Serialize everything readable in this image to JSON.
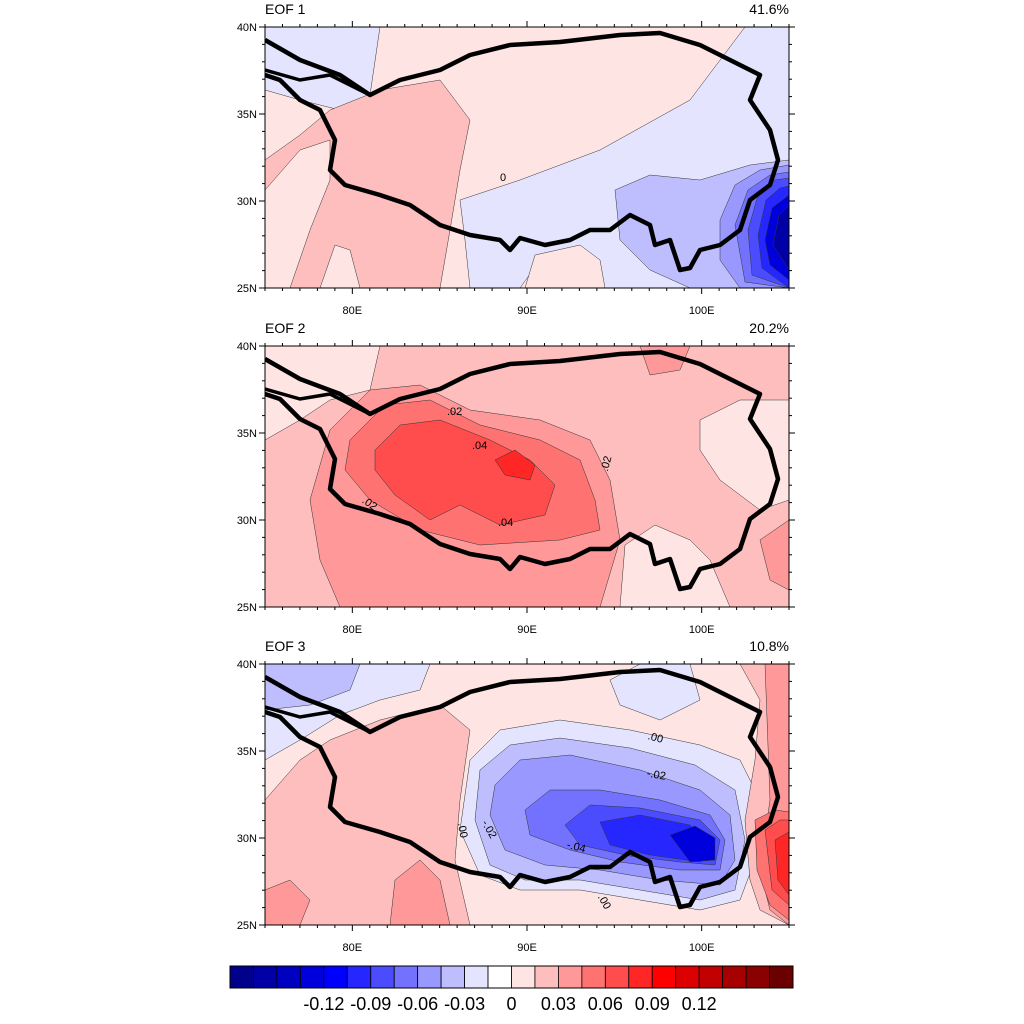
{
  "panels": [
    {
      "title": "EOF 1",
      "variance": "41.6%",
      "contour_labels": [
        "0"
      ]
    },
    {
      "title": "EOF 2",
      "variance": "20.2%",
      "contour_labels": [
        ".02",
        ".04",
        ".02",
        ".02",
        ".04"
      ]
    },
    {
      "title": "EOF 3",
      "variance": "10.8%",
      "contour_labels": [
        ".00",
        "-.02",
        ".00",
        "-.02",
        "-.04",
        ".00"
      ]
    }
  ],
  "axes": {
    "y_ticks": [
      "40N",
      "35N",
      "30N",
      "25N"
    ],
    "x_ticks": [
      "80E",
      "90E",
      "100E"
    ]
  },
  "colorbar": {
    "labels": [
      "-0.12",
      "-0.09",
      "-0.06",
      "-0.03",
      "0",
      "0.03",
      "0.06",
      "0.09",
      "0.12"
    ],
    "colors": [
      "#00008b",
      "#0000a6",
      "#0000c1",
      "#0000dc",
      "#0000ff",
      "#2626ff",
      "#4c4cff",
      "#7272ff",
      "#9898ff",
      "#bebeff",
      "#e4e4ff",
      "#ffffff",
      "#ffe4e4",
      "#ffbebe",
      "#ff9898",
      "#ff7272",
      "#ff4c4c",
      "#ff2626",
      "#ff0000",
      "#dc0000",
      "#c10000",
      "#a60000",
      "#8b0000",
      "#6b0000"
    ]
  },
  "chart_data": {
    "type": "heatmap",
    "region": {
      "lon": [
        75,
        105
      ],
      "lat": [
        25,
        40
      ]
    },
    "fields": [
      {
        "name": "EOF 1",
        "variance": "41.6%",
        "min": -0.13,
        "max": 0.02
      },
      {
        "name": "EOF 2",
        "variance": "20.2%",
        "min": 0.0,
        "max": 0.05
      },
      {
        "name": "EOF 3",
        "variance": "10.8%",
        "min": -0.05,
        "max": 0.07
      }
    ]
  }
}
